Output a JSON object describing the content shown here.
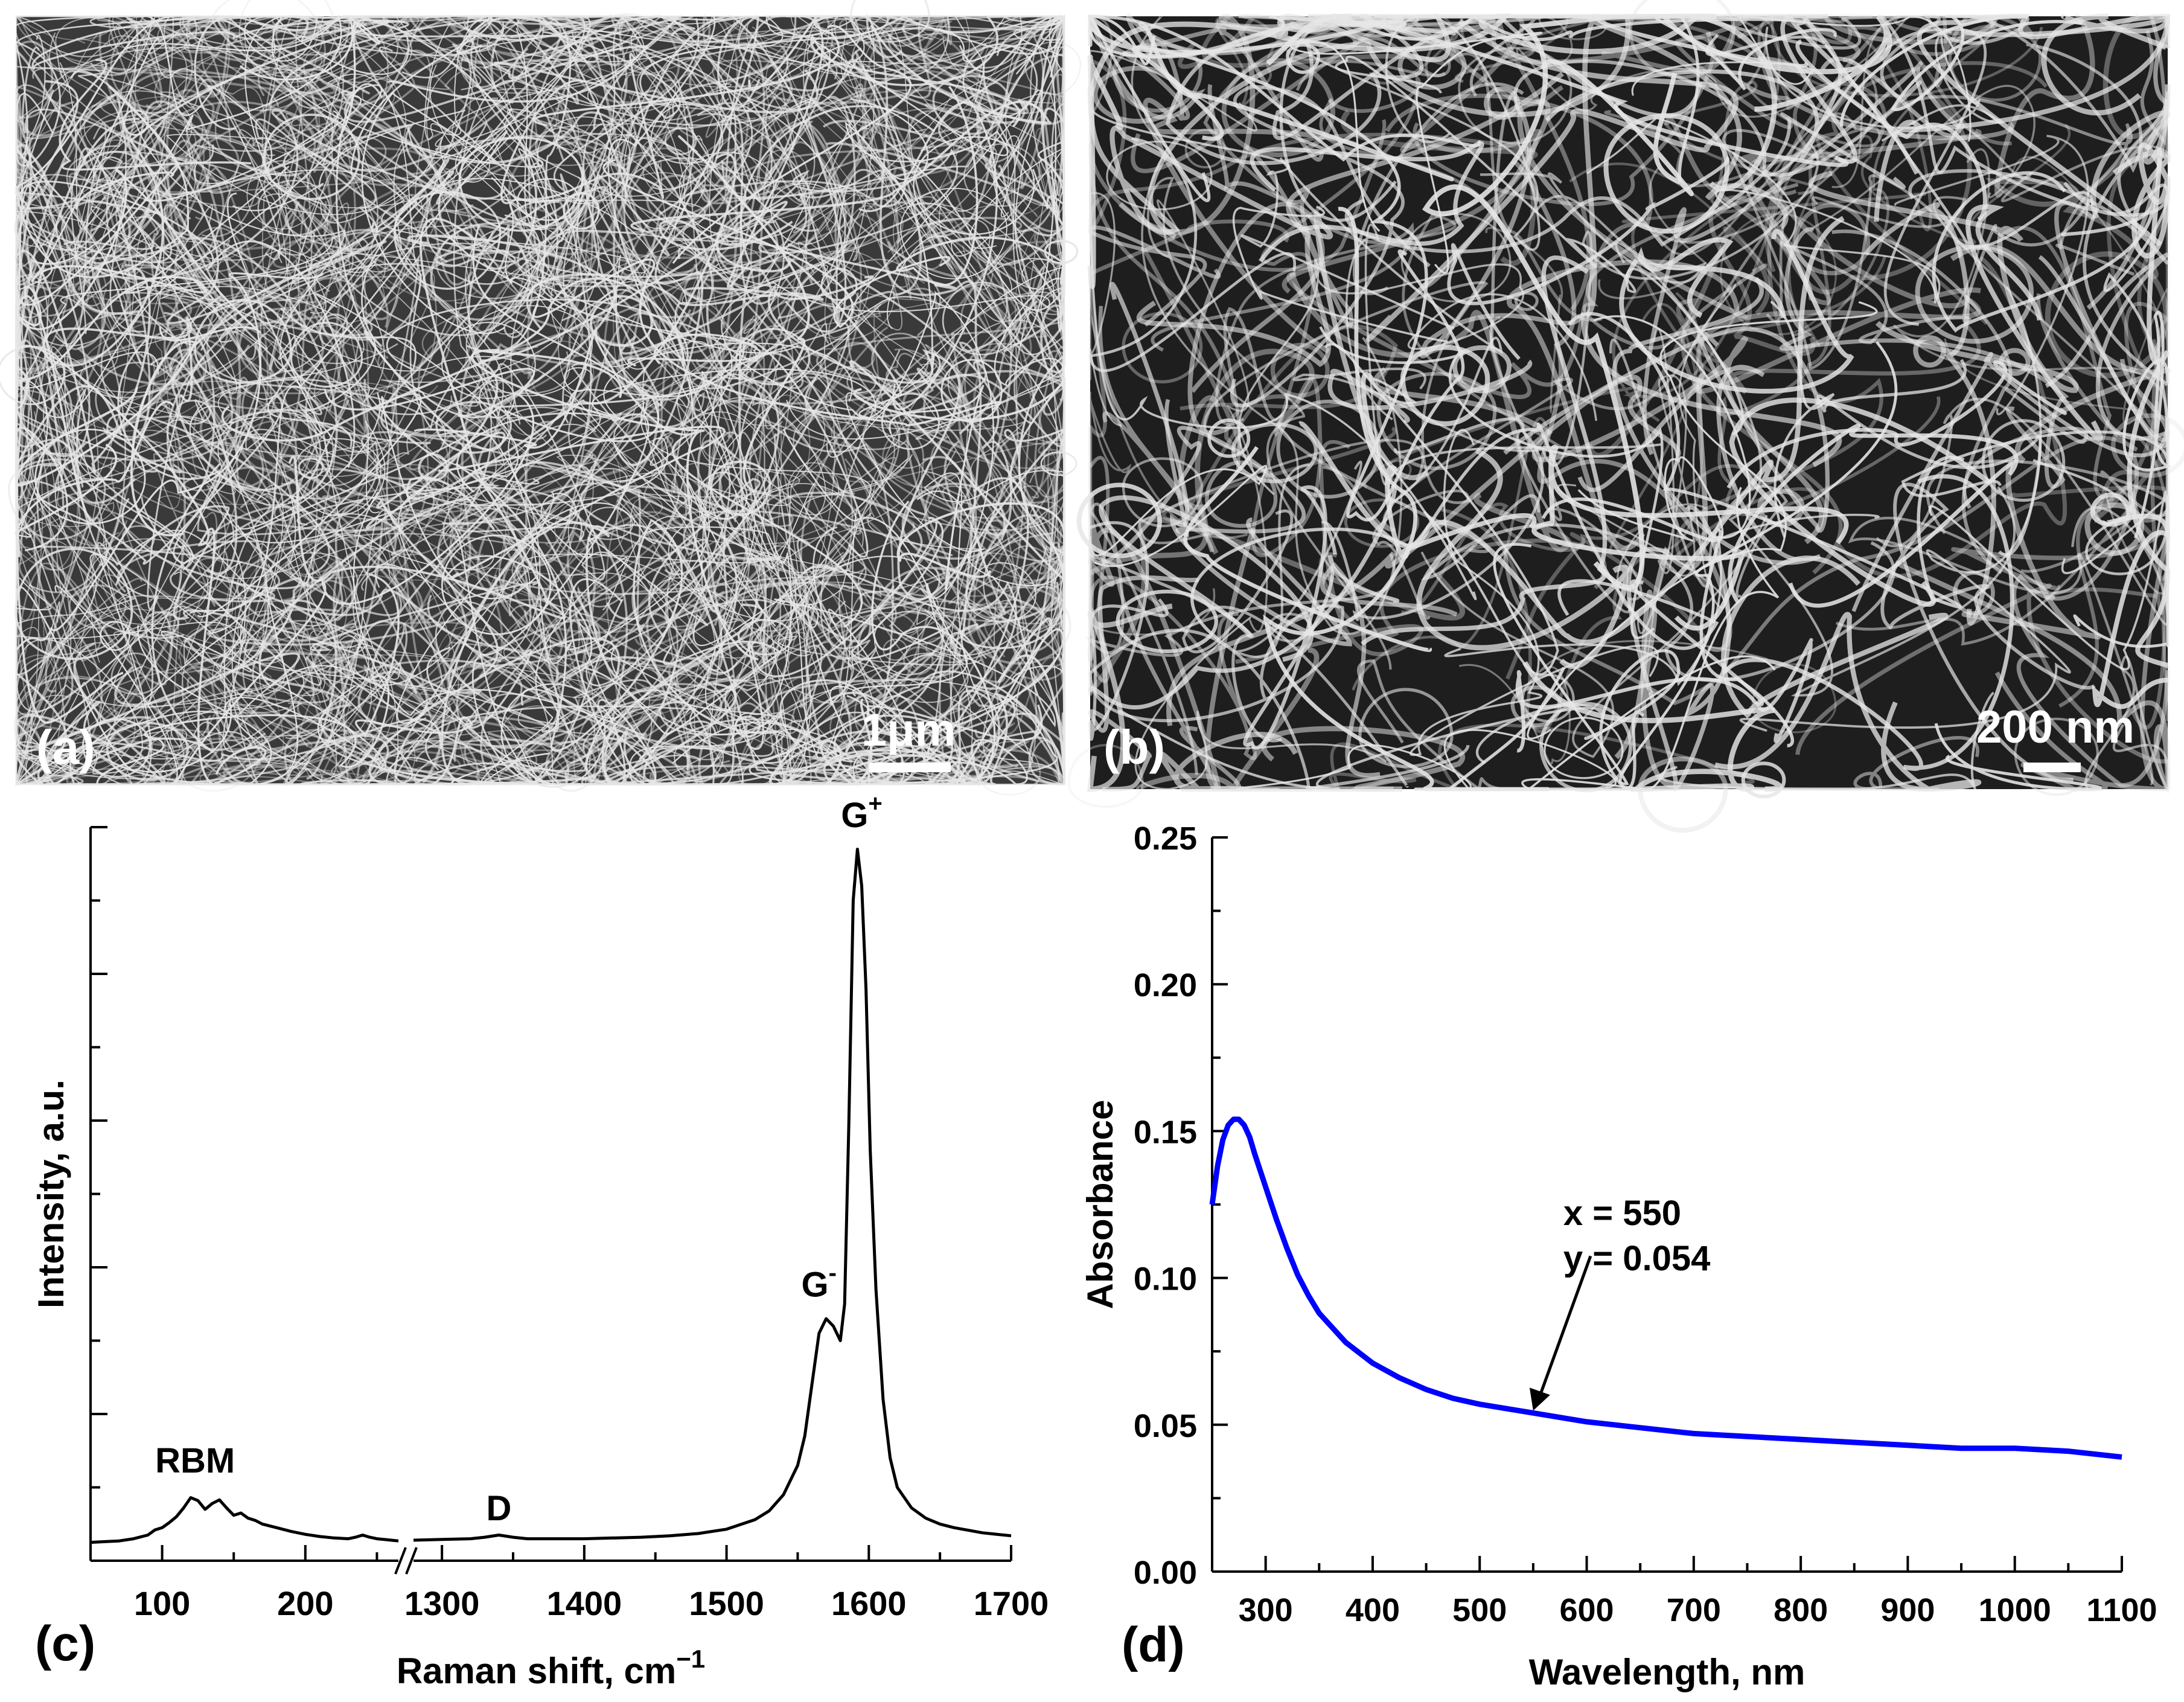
{
  "panels": {
    "a": {
      "label": "(a)",
      "scale_bar": "1μm"
    },
    "b": {
      "label": "(b)",
      "scale_bar": "200 nm"
    },
    "c": {
      "label": "(c)"
    },
    "d": {
      "label": "(d)"
    }
  },
  "colors": {
    "raman_line": "#000000",
    "absorbance_line": "#0000ff",
    "sem_background": "#3a3a3a",
    "sem_fiber": "#e6e6e6"
  },
  "chart_data": [
    {
      "panel": "c",
      "type": "line",
      "xlabel": "Raman shift, cm",
      "xlabel_sup": "−1",
      "ylabel": "Intensity, a.u.",
      "axis_break": "//",
      "x_segments": [
        {
          "xlim": [
            50,
            265
          ],
          "ticks": [
            "100",
            "200"
          ],
          "tick_values": [
            100,
            200
          ]
        },
        {
          "xlim": [
            1280,
            1700
          ],
          "ticks": [
            "1300",
            "1400",
            "1500",
            "1600",
            "1700"
          ],
          "tick_values": [
            1300,
            1400,
            1500,
            1600,
            1700
          ]
        }
      ],
      "ylim": [
        0,
        1.0
      ],
      "y_ticks_labeled": false,
      "series": [
        {
          "segment": 0,
          "x": [
            50,
            60,
            70,
            80,
            90,
            95,
            100,
            105,
            110,
            115,
            120,
            125,
            130,
            135,
            140,
            145,
            150,
            155,
            160,
            165,
            170,
            180,
            190,
            200,
            210,
            220,
            230,
            235,
            240,
            245,
            250,
            260,
            265
          ],
          "y": [
            0.025,
            0.026,
            0.027,
            0.03,
            0.035,
            0.042,
            0.045,
            0.052,
            0.06,
            0.072,
            0.086,
            0.082,
            0.07,
            0.078,
            0.083,
            0.072,
            0.062,
            0.065,
            0.058,
            0.055,
            0.05,
            0.045,
            0.04,
            0.036,
            0.033,
            0.031,
            0.03,
            0.032,
            0.035,
            0.032,
            0.03,
            0.028,
            0.027
          ]
        },
        {
          "segment": 1,
          "x": [
            1280,
            1300,
            1320,
            1330,
            1340,
            1350,
            1360,
            1400,
            1440,
            1460,
            1480,
            1500,
            1520,
            1530,
            1540,
            1550,
            1555,
            1560,
            1565,
            1570,
            1575,
            1580,
            1583,
            1586,
            1589,
            1592,
            1595,
            1598,
            1601,
            1605,
            1610,
            1615,
            1620,
            1630,
            1640,
            1650,
            1660,
            1680,
            1700
          ],
          "y": [
            0.028,
            0.029,
            0.03,
            0.032,
            0.035,
            0.032,
            0.03,
            0.03,
            0.032,
            0.034,
            0.037,
            0.043,
            0.056,
            0.068,
            0.09,
            0.13,
            0.17,
            0.24,
            0.31,
            0.33,
            0.32,
            0.3,
            0.35,
            0.6,
            0.9,
            0.97,
            0.92,
            0.78,
            0.56,
            0.37,
            0.22,
            0.14,
            0.1,
            0.072,
            0.058,
            0.05,
            0.045,
            0.038,
            0.034
          ]
        }
      ],
      "annotations": [
        {
          "text": "RBM",
          "x": 123,
          "y": 0.12,
          "segment": 0
        },
        {
          "text": "D",
          "x": 1340,
          "y": 0.055,
          "segment": 1
        },
        {
          "text": "G",
          "sup": "-",
          "x": 1565,
          "y": 0.36,
          "segment": 1
        },
        {
          "text": "G",
          "sup": "+",
          "x": 1595,
          "y": 1.0,
          "segment": 1
        }
      ]
    },
    {
      "panel": "d",
      "type": "line",
      "xlabel": "Wavelength, nm",
      "ylabel": "Absorbance",
      "xlim": [
        250,
        1100
      ],
      "ylim": [
        0.0,
        0.25
      ],
      "x_ticks": [
        300,
        400,
        500,
        600,
        700,
        800,
        900,
        1000,
        1100
      ],
      "y_ticks": [
        "0.00",
        "0.05",
        "0.10",
        "0.15",
        "0.20",
        "0.25"
      ],
      "series": [
        {
          "x": [
            250,
            255,
            260,
            265,
            270,
            275,
            280,
            285,
            290,
            300,
            310,
            320,
            330,
            340,
            350,
            375,
            400,
            425,
            450,
            475,
            500,
            550,
            600,
            650,
            700,
            750,
            800,
            850,
            900,
            950,
            1000,
            1050,
            1100
          ],
          "y": [
            0.125,
            0.138,
            0.147,
            0.152,
            0.154,
            0.154,
            0.152,
            0.148,
            0.142,
            0.131,
            0.12,
            0.11,
            0.101,
            0.094,
            0.088,
            0.078,
            0.071,
            0.066,
            0.062,
            0.059,
            0.057,
            0.054,
            0.051,
            0.049,
            0.047,
            0.046,
            0.045,
            0.044,
            0.043,
            0.042,
            0.042,
            0.041,
            0.039
          ]
        }
      ],
      "annotation": {
        "line1": "x = 550",
        "line2": "y = 0.054",
        "point": {
          "x": 550,
          "y": 0.054
        }
      }
    }
  ]
}
